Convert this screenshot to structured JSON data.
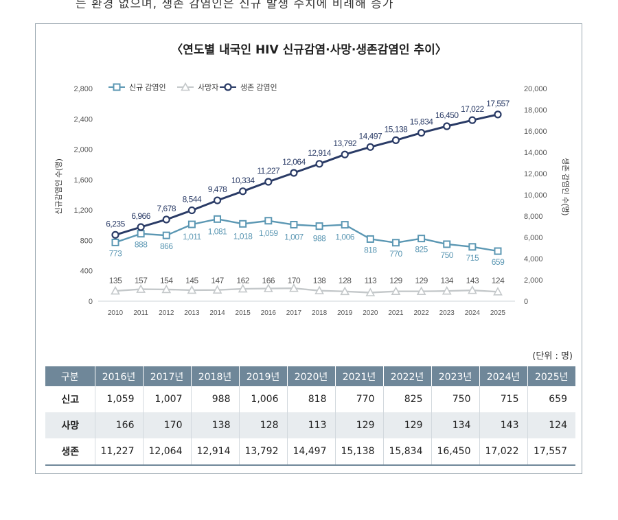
{
  "top_text": "는 환경 없으며, 생존 감염인은 신규 발생 수치에 비례해 증가",
  "chart_data": {
    "type": "line",
    "title": "〈연도별 내국인 HIV 신규감염·사망·생존감염인 추이〉",
    "x": [
      "2010",
      "2011",
      "2012",
      "2013",
      "2014",
      "2015",
      "2016",
      "2017",
      "2018",
      "2019",
      "2020",
      "2021",
      "2022",
      "2023",
      "2024",
      "2025"
    ],
    "left_axis": {
      "label": "신규감염인 수(명)",
      "ylim": [
        0,
        2800
      ],
      "ticks": [
        "0",
        "400",
        "800",
        "1,200",
        "1,600",
        "2,000",
        "2,400",
        "2,800"
      ]
    },
    "right_axis": {
      "label": "생존 감염인 수(명)",
      "ylim": [
        0,
        20000
      ],
      "ticks": [
        "0",
        "2,000",
        "4,000",
        "6,000",
        "8,000",
        "10,000",
        "12,000",
        "14,000",
        "16,000",
        "18,000",
        "20,000"
      ]
    },
    "legend": "top-left",
    "series": [
      {
        "name": "신규 감염인",
        "axis": "left",
        "color": "#5b97b3",
        "marker": "square",
        "values": [
          773,
          888,
          866,
          1011,
          1081,
          1018,
          1059,
          1007,
          988,
          1006,
          818,
          770,
          825,
          750,
          715,
          659
        ],
        "labels": [
          "773",
          "888",
          "866",
          "1,011",
          "1,081",
          "1,018",
          "1,059",
          "1,007",
          "988",
          "1,006",
          "818",
          "770",
          "825",
          "750",
          "715",
          "659"
        ]
      },
      {
        "name": "사망자",
        "axis": "left",
        "color": "#c4c8ca",
        "marker": "triangle",
        "values": [
          135,
          157,
          154,
          145,
          147,
          162,
          166,
          170,
          138,
          128,
          113,
          129,
          129,
          134,
          143,
          124
        ],
        "labels": [
          "135",
          "157",
          "154",
          "145",
          "147",
          "162",
          "166",
          "170",
          "138",
          "128",
          "113",
          "129",
          "129",
          "134",
          "143",
          "124"
        ]
      },
      {
        "name": "생존 감염인",
        "axis": "right",
        "color": "#2a3b66",
        "marker": "circle",
        "values": [
          6235,
          6966,
          7678,
          8544,
          9478,
          10334,
          11227,
          12064,
          12914,
          13792,
          14497,
          15138,
          15834,
          16450,
          17022,
          17557
        ],
        "labels": [
          "6,235",
          "6,966",
          "7,678",
          "8,544",
          "9,478",
          "10,334",
          "11,227",
          "12,064",
          "12,914",
          "13,792",
          "14,497",
          "15,138",
          "15,834",
          "16,450",
          "17,022",
          "17,557"
        ]
      }
    ]
  },
  "table": {
    "unit_note": "(단위 : 명)",
    "header": [
      "구분",
      "2016년",
      "2017년",
      "2018년",
      "2019년",
      "2020년",
      "2021년",
      "2022년",
      "2023년",
      "2024년",
      "2025년"
    ],
    "rows": [
      {
        "label": "신고",
        "cells": [
          "1,059",
          "1,007",
          "988",
          "1,006",
          "818",
          "770",
          "825",
          "750",
          "715",
          "659"
        ]
      },
      {
        "label": "사망",
        "cells": [
          "166",
          "170",
          "138",
          "128",
          "113",
          "129",
          "129",
          "134",
          "143",
          "124"
        ]
      },
      {
        "label": "생존",
        "cells": [
          "11,227",
          "12,064",
          "12,914",
          "13,792",
          "14,497",
          "15,138",
          "15,834",
          "16,450",
          "17,022",
          "17,557"
        ]
      }
    ]
  }
}
